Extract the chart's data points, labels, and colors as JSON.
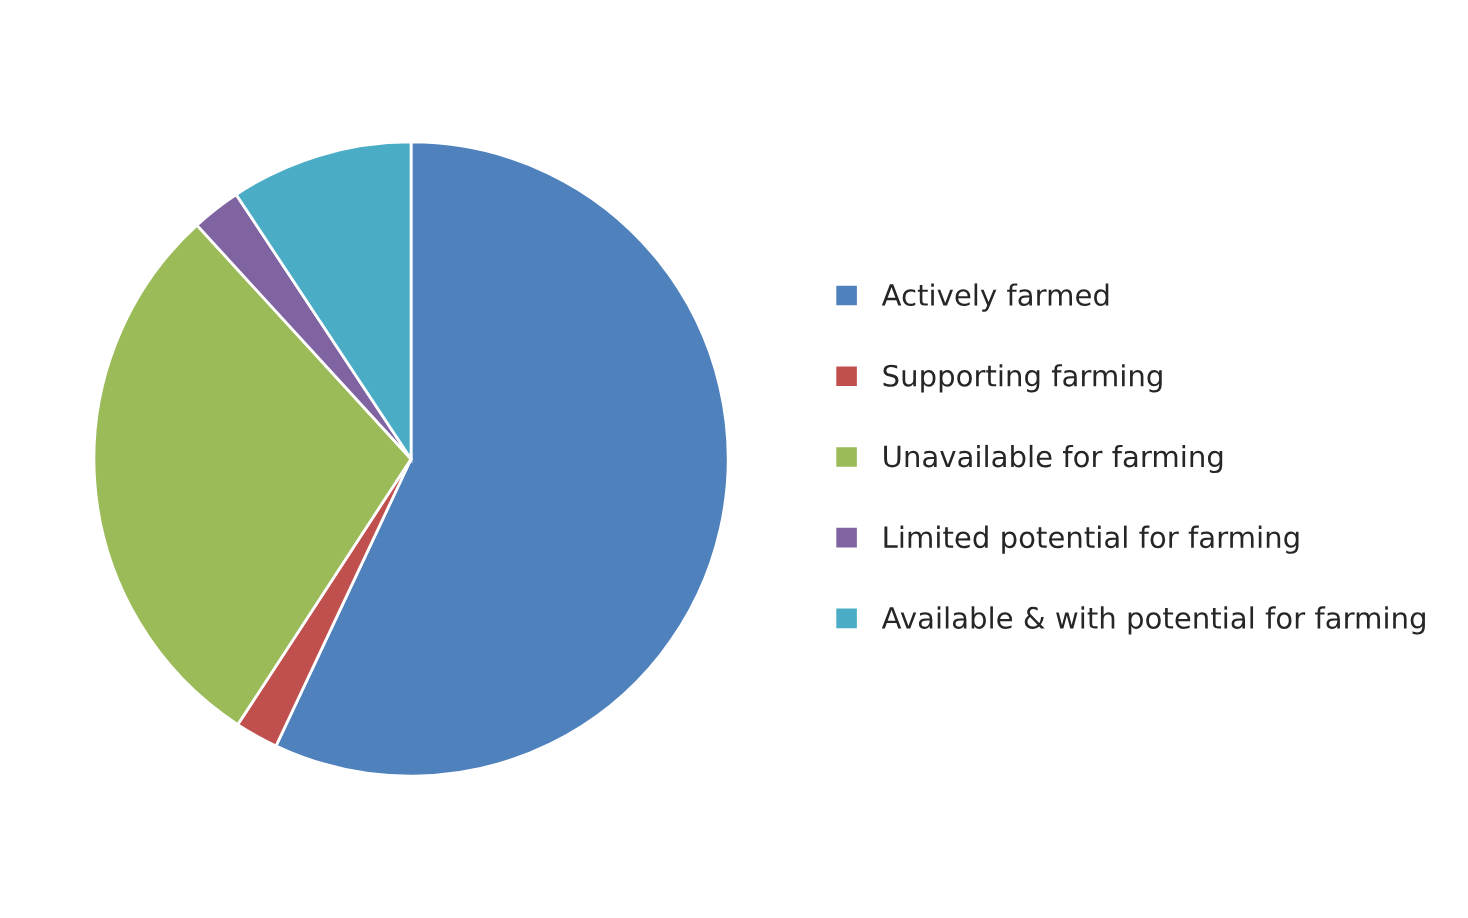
{
  "chart_data": {
    "type": "pie",
    "categories": [
      "Actively farmed",
      "Supporting farming",
      "Unavailable for farming",
      "Limited potential for farming",
      "Available & with potential for farming"
    ],
    "values": [
      57,
      2.2,
      29,
      2.5,
      9.3
    ],
    "colors": [
      "#4f81bd",
      "#c0504d",
      "#9bbb59",
      "#8064a2",
      "#4bacc6"
    ],
    "legend": "right"
  }
}
